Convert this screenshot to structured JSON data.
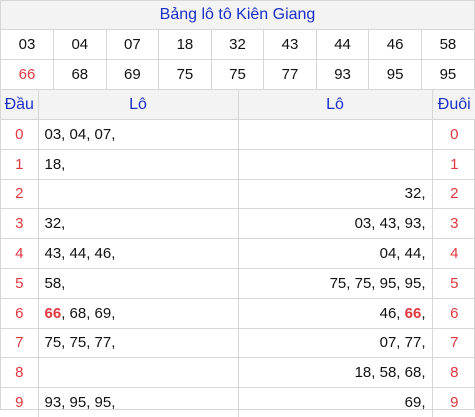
{
  "title": "Bảng lô tô Kiên Giang",
  "numbers_row1": [
    "03",
    "04",
    "07",
    "18",
    "32",
    "43",
    "44",
    "46",
    "58"
  ],
  "numbers_row2": [
    "66",
    "68",
    "69",
    "75",
    "75",
    "77",
    "93",
    "95",
    "95"
  ],
  "highlight_number": "66",
  "headers": {
    "dau": "Đầu",
    "lo_left": "Lô",
    "lo_right": "Lô",
    "duoi": "Đuôi"
  },
  "rows": [
    {
      "dau": "0",
      "left": [
        "03",
        "04",
        "07"
      ],
      "right": [],
      "duoi": "0"
    },
    {
      "dau": "1",
      "left": [
        "18"
      ],
      "right": [],
      "duoi": "1"
    },
    {
      "dau": "2",
      "left": [],
      "right": [
        "32"
      ],
      "duoi": "2"
    },
    {
      "dau": "3",
      "left": [
        "32"
      ],
      "right": [
        "03",
        "43",
        "93"
      ],
      "duoi": "3"
    },
    {
      "dau": "4",
      "left": [
        "43",
        "44",
        "46"
      ],
      "right": [
        "04",
        "44"
      ],
      "duoi": "4"
    },
    {
      "dau": "5",
      "left": [
        "58"
      ],
      "right": [
        "75",
        "75",
        "95",
        "95"
      ],
      "duoi": "5"
    },
    {
      "dau": "6",
      "left": [
        "66",
        "68",
        "69"
      ],
      "right": [
        "46",
        "66"
      ],
      "duoi": "6"
    },
    {
      "dau": "7",
      "left": [
        "75",
        "75",
        "77"
      ],
      "right": [
        "07",
        "77"
      ],
      "duoi": "7"
    },
    {
      "dau": "8",
      "left": [],
      "right": [
        "18",
        "58",
        "68"
      ],
      "duoi": "8"
    },
    {
      "dau": "9",
      "left": [
        "93",
        "95",
        "95"
      ],
      "right": [
        "69"
      ],
      "duoi": "9"
    }
  ]
}
